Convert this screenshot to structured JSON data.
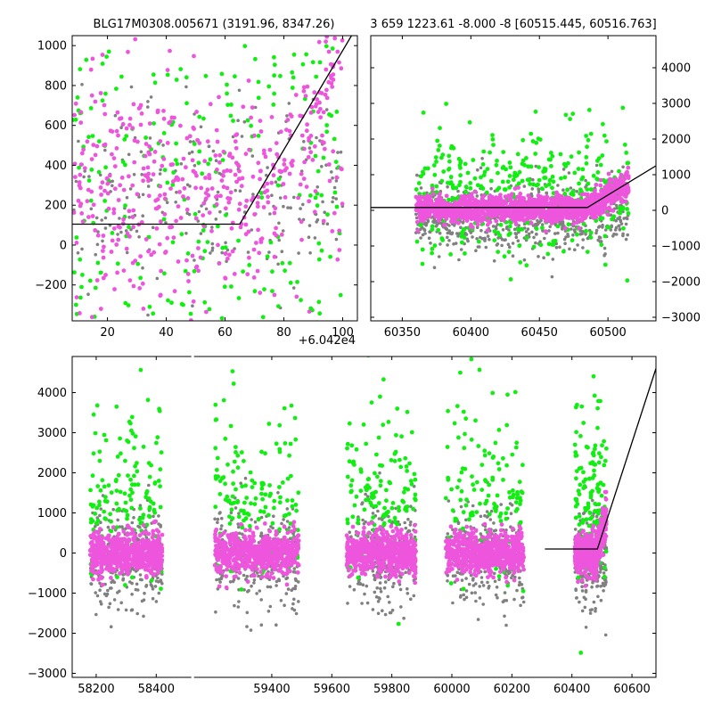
{
  "colors": {
    "grey": "#808080",
    "green": "#11ee11",
    "magenta": "#ee55dd",
    "model": "#000000"
  },
  "chart_data": [
    {
      "type": "scatter",
      "title": "BLG17M0308.005671 (3191.96, 8347.26)",
      "x_offset_label": "+6.042e4",
      "xlim": [
        8,
        105
      ],
      "ylim": [
        -380,
        1050
      ],
      "xticks": [
        20,
        40,
        60,
        80,
        100
      ],
      "yticks": [
        -200,
        0,
        200,
        400,
        600,
        800,
        1000
      ],
      "series": [
        {
          "color": "grey",
          "x_range": [
            8,
            100
          ],
          "y_mean": 250,
          "y_sd": 230
        },
        {
          "color": "green",
          "x_range": [
            8,
            100
          ],
          "y_mean": 300,
          "y_sd": 320
        },
        {
          "color": "magenta",
          "x_range": [
            8,
            100
          ],
          "y_mean": 300,
          "y_sd": 280
        }
      ],
      "model": {
        "x": [
          8,
          65,
          103
        ],
        "y": [
          105,
          105,
          1050
        ]
      }
    },
    {
      "type": "scatter",
      "title": "3 659 1223.61 -8.000 -8 [60515.445, 60516.763]",
      "xlim": [
        60327,
        60535
      ],
      "ylim": [
        -3100,
        4900
      ],
      "xticks": [
        60350,
        60400,
        60450,
        60500
      ],
      "yticks": [
        -3000,
        -2000,
        -1000,
        0,
        1000,
        2000,
        3000,
        4000
      ],
      "series": [
        {
          "color": "grey",
          "x_range": [
            60360,
            60515
          ],
          "y_mean": -150,
          "y_sd": 500
        },
        {
          "color": "green",
          "x_range": [
            60360,
            60515
          ],
          "y_mean": 500,
          "y_sd": 900
        },
        {
          "color": "magenta",
          "x_range": [
            60360,
            60515
          ],
          "y_mean": 50,
          "y_sd": 180
        }
      ],
      "model": {
        "x": [
          60327,
          60485,
          60535
        ],
        "y": [
          80,
          80,
          1250
        ]
      }
    },
    {
      "type": "scatter",
      "title": "",
      "xlim": [
        58120,
        60680
      ],
      "ylim": [
        -3100,
        4900
      ],
      "xticks": [
        58200,
        58400,
        59400,
        59600,
        59800,
        60000,
        60200,
        60400,
        60600
      ],
      "yticks": [
        -3000,
        -2000,
        -1000,
        0,
        1000,
        2000,
        3000,
        4000
      ],
      "broken_axis": {
        "gap_from": 58520,
        "gap_to": 59135
      },
      "seasons": [
        [
          58180,
          58420
        ],
        [
          59210,
          59490
        ],
        [
          59650,
          59880
        ],
        [
          59980,
          60240
        ],
        [
          60410,
          60515
        ]
      ],
      "series": [
        {
          "color": "grey",
          "y_mean": -100,
          "y_sd": 650
        },
        {
          "color": "green",
          "y_mean": 900,
          "y_sd": 1300
        },
        {
          "color": "magenta",
          "y_mean": 0,
          "y_sd": 250
        }
      ],
      "model": {
        "x": [
          60310,
          60485,
          60680
        ],
        "y": [
          100,
          100,
          4600
        ]
      }
    }
  ]
}
